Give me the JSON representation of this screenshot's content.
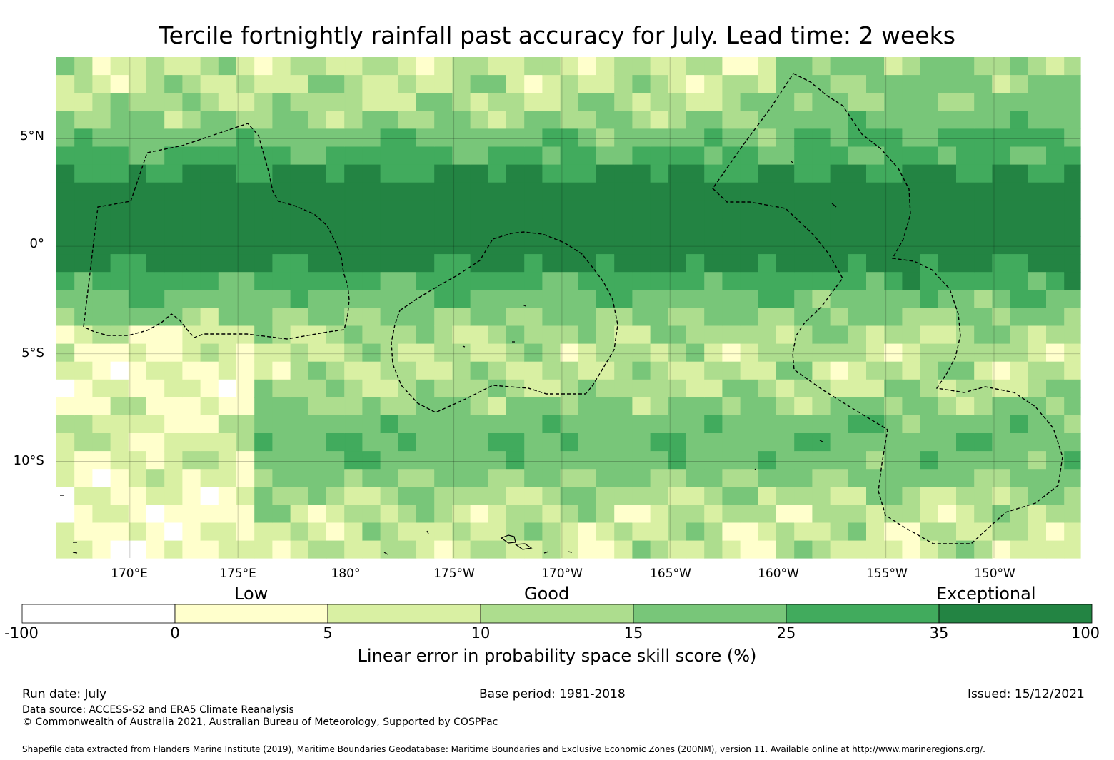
{
  "title": "Tercile fortnightly rainfall past accuracy for July. Lead time: 2 weeks",
  "map": {
    "lat_labels": [
      "5°N",
      "0°",
      "5°S",
      "10°S"
    ],
    "lon_labels": [
      "170°E",
      "175°E",
      "180°",
      "175°W",
      "170°W",
      "165°W",
      "160°W",
      "155°W",
      "150°W"
    ],
    "extent": {
      "lon_min": 166.6,
      "lon_max": 214.0,
      "lat_min": -14.5,
      "lat_max": 8.8
    },
    "grid_step_deg": 0.833,
    "skill_zones_description_only": false
  },
  "colorbar": {
    "category_labels": [
      "Low",
      "Good",
      "Exceptional"
    ],
    "ticks": [
      "-100",
      "0",
      "5",
      "10",
      "15",
      "25",
      "35",
      "100"
    ],
    "colors": [
      "#ffffff",
      "#ffffcc",
      "#d9f0a3",
      "#addd8e",
      "#78c679",
      "#41ab5d",
      "#238443"
    ],
    "title": "Linear error in probability space skill score (%)"
  },
  "footer": {
    "run_date": "Run date: July",
    "base_period": "Base period: 1981-2018",
    "issued": "Issued: 15/12/2021",
    "data_source": "Data source: ACCESS-S2 and ERA5 Climate Reanalysis",
    "copyright": "© Commonwealth of Australia 2021, Australian Bureau of Meteorology, Supported by COSPPac",
    "shapefile": "Shapefile data extracted from Flanders Marine Institute (2019), Maritime Boundaries Geodatabase: Maritime Boundaries and Exclusive Economic Zones (200NM), version 11. Available online at http://www.marineregions.org/."
  }
}
